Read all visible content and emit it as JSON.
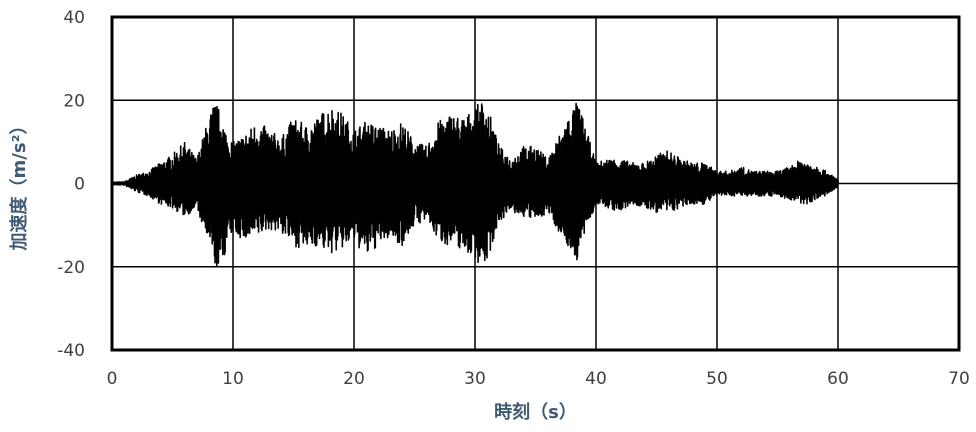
{
  "chart_data": {
    "type": "line",
    "title": "",
    "xlabel": "時刻（s）",
    "ylabel": "加速度（m/s²）",
    "xlim": [
      0,
      70
    ],
    "ylim": [
      -40,
      40
    ],
    "xticks": [
      0,
      10,
      20,
      30,
      40,
      50,
      60,
      70
    ],
    "yticks": [
      40,
      20,
      0,
      -20,
      -40
    ],
    "grid": true,
    "legend": "none",
    "series": [
      {
        "color": "#000000",
        "x": [
          0,
          1,
          2,
          3,
          4,
          5,
          6,
          7,
          8,
          8.5,
          9,
          9.5,
          10,
          11,
          12,
          13,
          14,
          15,
          16,
          17,
          18,
          19,
          20,
          21,
          22,
          23,
          24,
          25,
          26,
          27,
          28,
          29,
          30,
          30.5,
          31,
          32,
          33,
          34,
          35,
          36,
          37,
          38,
          38.5,
          39,
          40,
          41,
          42,
          43,
          44,
          45,
          46,
          47,
          48,
          49,
          50,
          51,
          52,
          53,
          54,
          55,
          56,
          57,
          57.5,
          58,
          59,
          60
        ],
        "y_upper": [
          0.3,
          0.4,
          2,
          3,
          5,
          7,
          10,
          6,
          16,
          20,
          17,
          12,
          10,
          12,
          15,
          13,
          11,
          16,
          14,
          16,
          19,
          17,
          13,
          15,
          14,
          13,
          15,
          10,
          9,
          15,
          17,
          16,
          18,
          20,
          19,
          9,
          6,
          9,
          9,
          6,
          12,
          18,
          20,
          15,
          5,
          6,
          6,
          5,
          5,
          7,
          8,
          6,
          5,
          5,
          3,
          3,
          4,
          3,
          3,
          3,
          4,
          6,
          5,
          5,
          3,
          1
        ],
        "y_lower": [
          -0.3,
          -0.4,
          -2,
          -3,
          -5,
          -6,
          -8,
          -6,
          -15,
          -20,
          -21,
          -15,
          -12,
          -14,
          -13,
          -11,
          -12,
          -15,
          -16,
          -15,
          -17,
          -16,
          -14,
          -18,
          -15,
          -13,
          -15,
          -10,
          -9,
          -14,
          -15,
          -16,
          -18,
          -20,
          -19,
          -9,
          -7,
          -8,
          -9,
          -7,
          -12,
          -17,
          -19,
          -13,
          -5,
          -6,
          -7,
          -5,
          -6,
          -7,
          -7,
          -6,
          -5,
          -5,
          -3,
          -3,
          -3,
          -3,
          -3,
          -3,
          -4,
          -5,
          -5,
          -4,
          -3,
          -1
        ]
      }
    ]
  }
}
